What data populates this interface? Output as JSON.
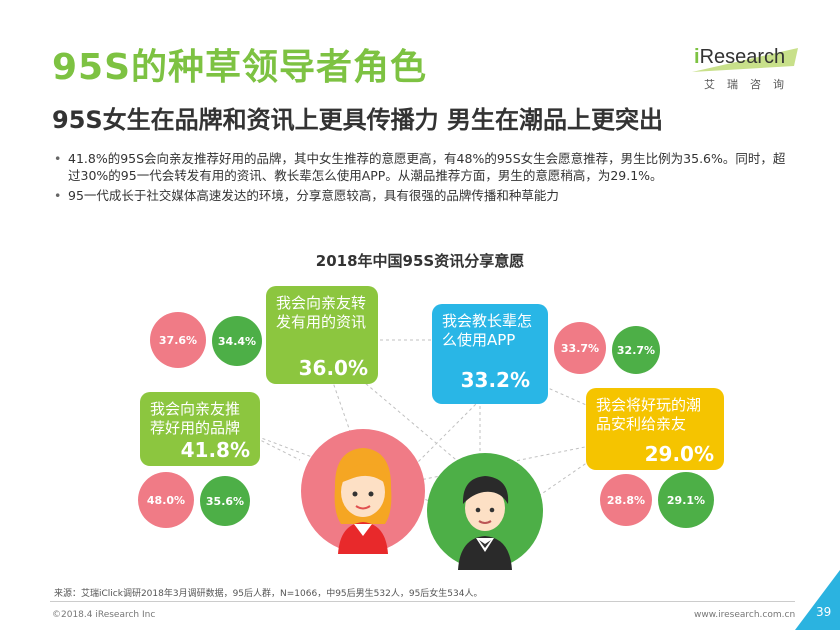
{
  "header": {
    "title": "95S的种草领导者角色",
    "subtitle": "95S女生在品牌和资讯上更具传播力 男生在潮品上更突出"
  },
  "logo": {
    "prefix": "i",
    "name": "Research",
    "sub": "艾瑞咨询"
  },
  "bullets": [
    "41.8%的95S会向亲友推荐好用的品牌，其中女生推荐的意愿更高，有48%的95S女生会愿意推荐，男生比例为35.6%。同时，超过30%的95一代会转发有用的资讯、教长辈怎么使用APP。从潮品推荐方面，男生的意愿稍高，为29.1%。",
    "95一代成长于社交媒体高速发达的环境，分享意愿较高，具有很强的品牌传播和种草能力"
  ],
  "chart_data": {
    "type": "other",
    "title": "2018年中国95S资讯分享意愿",
    "categories": [
      {
        "label": "我会向亲友推荐好用的品牌",
        "overall": "41.8%",
        "female": "48.0%",
        "male": "35.6%",
        "color": "#8cc63f"
      },
      {
        "label": "我会向亲友转发有用的资讯",
        "overall": "36.0%",
        "female": "37.6%",
        "male": "34.4%",
        "color": "#8cc63f"
      },
      {
        "label": "我会教长辈怎么使用APP",
        "overall": "33.2%",
        "female": "33.7%",
        "male": "32.7%",
        "color": "#29b6e6"
      },
      {
        "label": "我会将好玩的潮品安利给亲友",
        "overall": "29.0%",
        "female": "28.8%",
        "male": "29.1%",
        "color": "#f5c400"
      }
    ],
    "colors": {
      "female": "#f07b86",
      "male": "#4daf47"
    }
  },
  "footer": {
    "source": "来源：艾瑞iClick调研2018年3月调研数据，95后人群，N=1066，中95后男生532人，95后女生534人。",
    "copyright": "©2018.4 iResearch Inc",
    "website": "www.iresearch.com.cn",
    "page": "39"
  }
}
